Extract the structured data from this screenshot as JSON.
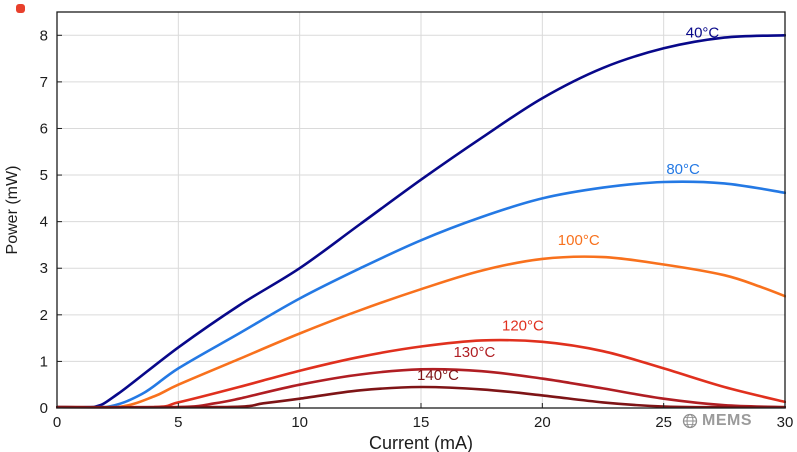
{
  "chart_data": {
    "type": "line",
    "title": "",
    "xlabel": "Current (mA)",
    "ylabel": "Power (mW)",
    "xlim": [
      0,
      30
    ],
    "ylim": [
      0,
      8.5
    ],
    "xticks": [
      0,
      5,
      10,
      15,
      20,
      25,
      30
    ],
    "yticks": [
      0,
      1,
      2,
      3,
      4,
      5,
      6,
      7,
      8
    ],
    "grid": true,
    "legend_position": "inline-labels",
    "background": "#ffffff",
    "grid_color": "#dadada",
    "axis_color": "#1c1c1c",
    "series": [
      {
        "id": "40c",
        "name": "40°C",
        "color": "#08088a",
        "label_pos": {
          "x": 26.6,
          "y": 7.95
        },
        "x": [
          0,
          1.5,
          2.5,
          5,
          7.5,
          10,
          12.5,
          15,
          17.5,
          20,
          22.5,
          25,
          27.5,
          30
        ],
        "y": [
          0,
          0.02,
          0.3,
          1.3,
          2.2,
          3.0,
          3.95,
          4.9,
          5.8,
          6.65,
          7.3,
          7.72,
          7.95,
          8.0
        ]
      },
      {
        "id": "80c",
        "name": "80°C",
        "color": "#2479e4",
        "label_pos": {
          "x": 25.8,
          "y": 5.02
        },
        "x": [
          0,
          2,
          3.5,
          5,
          7.5,
          10,
          12.5,
          15,
          17.5,
          20,
          22.5,
          25,
          27.5,
          30
        ],
        "y": [
          0,
          0.02,
          0.3,
          0.85,
          1.6,
          2.35,
          3.0,
          3.6,
          4.1,
          4.5,
          4.73,
          4.85,
          4.82,
          4.62
        ]
      },
      {
        "id": "100c",
        "name": "100°C",
        "color": "#f8711d",
        "label_pos": {
          "x": 21.5,
          "y": 3.5
        },
        "x": [
          0,
          2.5,
          4,
          5,
          7.5,
          10,
          12.5,
          15,
          17.5,
          20,
          22.5,
          25,
          27.5,
          29,
          30
        ],
        "y": [
          0,
          0.02,
          0.25,
          0.5,
          1.05,
          1.6,
          2.1,
          2.55,
          2.95,
          3.2,
          3.24,
          3.08,
          2.85,
          2.6,
          2.4
        ]
      },
      {
        "id": "120c",
        "name": "120°C",
        "color": "#e0301e",
        "label_pos": {
          "x": 19.2,
          "y": 1.66
        },
        "x": [
          0,
          4,
          5,
          7.5,
          10,
          12.5,
          15,
          17.5,
          20,
          22.5,
          25,
          27.5,
          30
        ],
        "y": [
          0,
          0.02,
          0.12,
          0.45,
          0.8,
          1.1,
          1.32,
          1.45,
          1.42,
          1.22,
          0.85,
          0.45,
          0.13
        ]
      },
      {
        "id": "130c",
        "name": "130°C",
        "color": "#b01e23",
        "label_pos": {
          "x": 17.2,
          "y": 1.09
        },
        "x": [
          0,
          5,
          6.5,
          7.5,
          10,
          12.5,
          15,
          17.5,
          20,
          22.5,
          25,
          27.5,
          30
        ],
        "y": [
          0,
          0.02,
          0.1,
          0.2,
          0.5,
          0.72,
          0.83,
          0.79,
          0.63,
          0.42,
          0.2,
          0.06,
          0.01
        ]
      },
      {
        "id": "140c",
        "name": "140°C",
        "color": "#7e1416",
        "label_pos": {
          "x": 15.7,
          "y": 0.6
        },
        "x": [
          0,
          7,
          8.5,
          10,
          12.5,
          15,
          17.5,
          20,
          22.5,
          25,
          27,
          30
        ],
        "y": [
          0,
          0.02,
          0.1,
          0.2,
          0.38,
          0.45,
          0.4,
          0.27,
          0.12,
          0.03,
          0.0,
          0.0
        ]
      }
    ]
  },
  "watermark": {
    "text": "MEMS",
    "icon": "globe-icon"
  }
}
